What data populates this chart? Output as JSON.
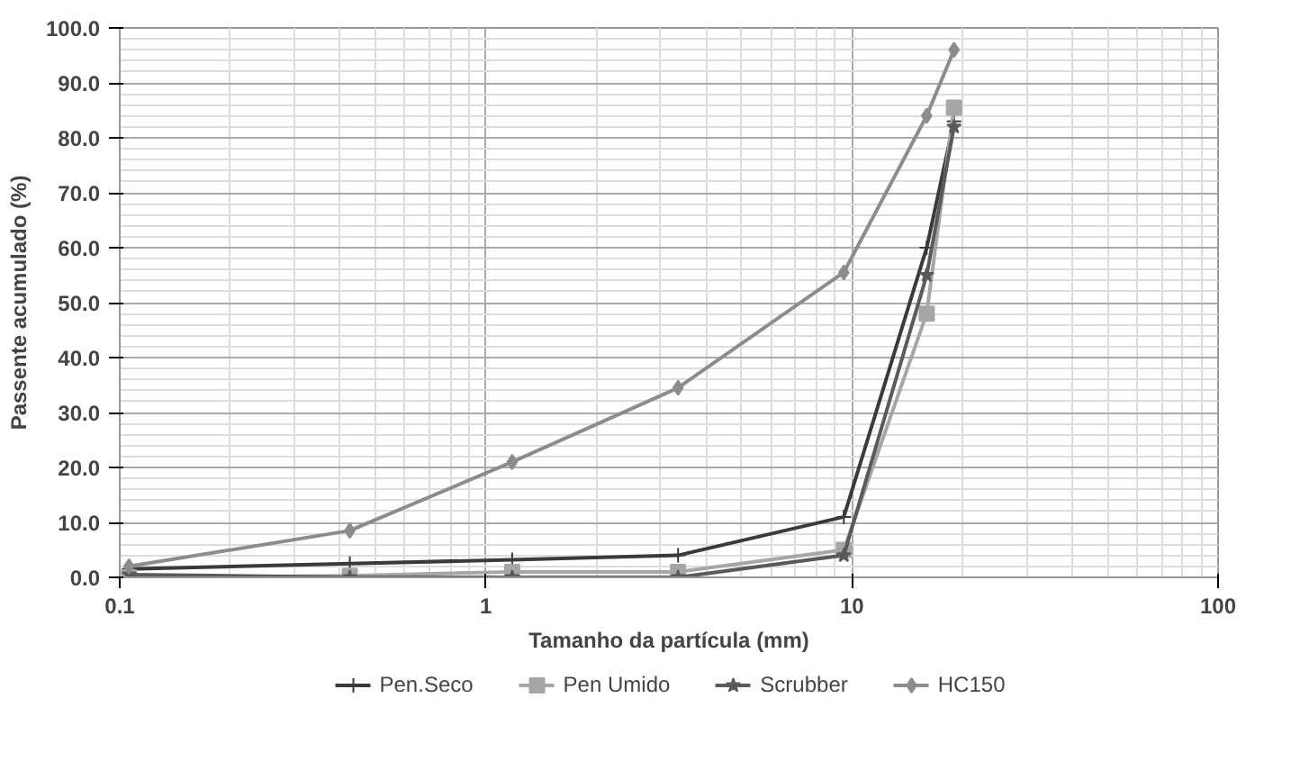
{
  "chart_data": {
    "type": "line",
    "xlabel": "Tamanho da partícula (mm)",
    "ylabel": "Passente acumulado (%)",
    "log": "x",
    "xlim": [
      0.1,
      100
    ],
    "xticks": [
      0.1,
      1,
      10,
      100
    ],
    "ylim": [
      0,
      100
    ],
    "yticks": [
      {
        "value": 0,
        "label": "0.0"
      },
      {
        "value": 10,
        "label": "10.0"
      },
      {
        "value": 20,
        "label": "20.0"
      },
      {
        "value": 30,
        "label": "30.0"
      },
      {
        "value": 40,
        "label": "40.0"
      },
      {
        "value": 50,
        "label": "50.0"
      },
      {
        "value": 60,
        "label": "60.0"
      },
      {
        "value": 70,
        "label": "70.0"
      },
      {
        "value": 80,
        "label": "80.0"
      },
      {
        "value": 90,
        "label": "90.0"
      },
      {
        "value": 100,
        "label": "100.0"
      }
    ],
    "x": [
      0.106,
      0.425,
      1.18,
      3.35,
      9.5,
      16,
      19
    ],
    "grid": true,
    "legend": "bottom",
    "line_style": "solid",
    "series": [
      {
        "name": "Pen.Seco",
        "color": "#3a3a3a",
        "marker": "cross",
        "values": [
          1.5,
          2.5,
          3.2,
          4,
          11,
          60,
          83
        ]
      },
      {
        "name": "Pen Umido",
        "color": "#a6a6a6",
        "marker": "square",
        "values": [
          0,
          0.3,
          1,
          1,
          5,
          48,
          85.5
        ]
      },
      {
        "name": "Scrubber",
        "color": "#5a5a5a",
        "marker": "star",
        "values": [
          0.5,
          0,
          0,
          0,
          4,
          55,
          82
        ]
      },
      {
        "name": "HC150",
        "color": "#8c8c8c",
        "marker": "diamond",
        "values": [
          2,
          8.5,
          21,
          34.5,
          55.5,
          84,
          96
        ]
      }
    ]
  }
}
